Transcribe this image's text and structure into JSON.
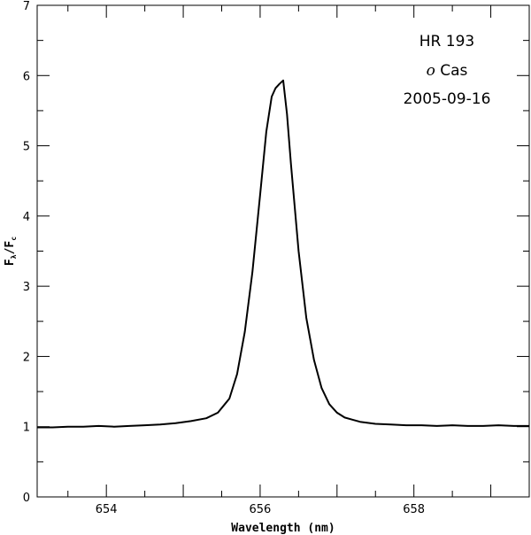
{
  "chart_data": {
    "type": "line",
    "xlabel": "Wavelength (nm)",
    "ylabel": {
      "main": "F",
      "sub1": "λ",
      "sep": "/",
      "main2": "F",
      "sub2": "c"
    },
    "xlim": [
      653.1,
      659.5
    ],
    "ylim": [
      0,
      7
    ],
    "x_ticks": [
      654,
      656,
      658
    ],
    "y_ticks": [
      0,
      1,
      2,
      3,
      4,
      5,
      6,
      7
    ],
    "annotations": {
      "star_id": "HR 193",
      "star_name_italic": "o",
      "star_name_rest": " Cas",
      "date": "2005-09-16"
    },
    "grid": false,
    "series": [
      {
        "x": [
          653.1,
          653.3,
          653.5,
          653.7,
          653.9,
          654.1,
          654.3,
          654.5,
          654.7,
          654.9,
          655.1,
          655.3,
          655.45,
          655.6,
          655.7,
          655.8,
          655.9,
          656.0,
          656.08,
          656.15,
          656.2,
          656.25,
          656.3,
          656.35,
          656.4,
          656.5,
          656.6,
          656.7,
          656.8,
          656.9,
          657.0,
          657.1,
          657.2,
          657.3,
          657.5,
          657.7,
          657.9,
          658.1,
          658.3,
          658.5,
          658.7,
          658.9,
          659.1,
          659.3,
          659.5
        ],
        "y": [
          0.99,
          0.99,
          1.0,
          1.0,
          1.01,
          1.0,
          1.01,
          1.02,
          1.03,
          1.05,
          1.08,
          1.12,
          1.2,
          1.4,
          1.75,
          2.35,
          3.2,
          4.3,
          5.2,
          5.7,
          5.82,
          5.88,
          5.93,
          5.45,
          4.75,
          3.5,
          2.55,
          1.95,
          1.55,
          1.32,
          1.2,
          1.13,
          1.1,
          1.07,
          1.04,
          1.03,
          1.02,
          1.02,
          1.01,
          1.02,
          1.01,
          1.01,
          1.02,
          1.01,
          1.01
        ]
      }
    ]
  }
}
